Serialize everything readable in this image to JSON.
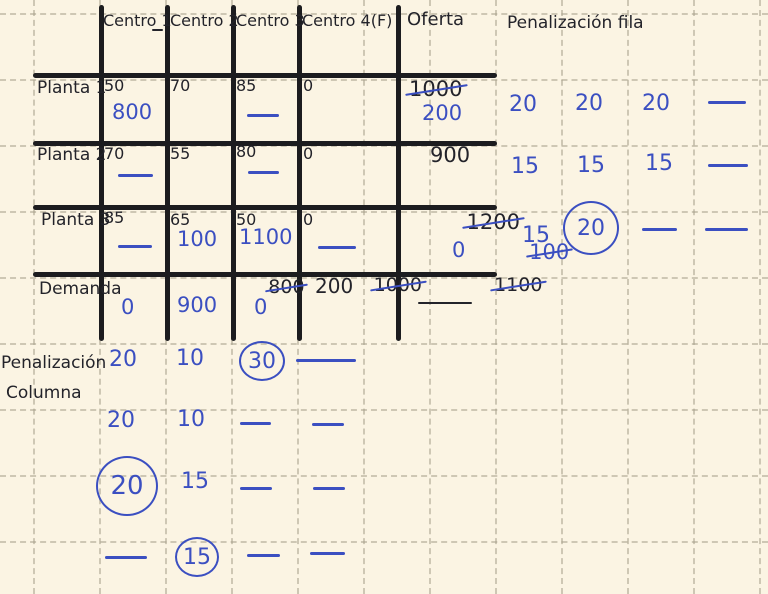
{
  "palette": {
    "paper": "#fbf4e3",
    "ink": "#23232a",
    "pen": "#3b4fc1"
  },
  "table": {
    "columns": [
      "Centro 1",
      "Centro 2",
      "Centro 3",
      "Centro 4(F)",
      "Oferta"
    ],
    "rows": [
      {
        "label": "Planta 1",
        "costs": [
          "50",
          "70",
          "85",
          "0"
        ],
        "marks": {
          "alloc_c1": "800",
          "dash_c3": "—"
        },
        "oferta": {
          "old": "1000",
          "new": "200"
        }
      },
      {
        "label": "Planta 2",
        "costs": [
          "70",
          "55",
          "80",
          "0"
        ],
        "marks": {
          "dash_c1": "—",
          "dash_c3": "—"
        },
        "oferta": {
          "value": "900"
        }
      },
      {
        "label": "Planta 3",
        "costs": [
          "85",
          "65",
          "50",
          "0"
        ],
        "marks": {
          "dash_c1": "—",
          "alloc_c2": "100",
          "alloc_c3": "1100",
          "dash_c4": "—"
        },
        "oferta": {
          "old": "1200",
          "mid": "100",
          "new": "0"
        }
      }
    ],
    "demand": {
      "label": "Demanda",
      "c1": {
        "old": "800",
        "new": "0"
      },
      "c2": {
        "old": "1000",
        "new": "900"
      },
      "c3": {
        "old": "1100",
        "new": "0"
      },
      "c4": {
        "value": "200"
      },
      "oferta_dash": "—"
    }
  },
  "row_penalty": {
    "title": "Penalización fila",
    "iter1": [
      "20",
      "20",
      "20",
      "—"
    ],
    "iter2": [
      "15",
      "15",
      "15",
      "—"
    ],
    "iter3": [
      "15",
      "20",
      "—",
      "—"
    ]
  },
  "col_penalty": {
    "title_line1": "Penalización",
    "title_line2": "Columna",
    "iter1": [
      "20",
      "10",
      "30",
      "—"
    ],
    "iter2": [
      "20",
      "10",
      "—",
      "—"
    ],
    "iter3": [
      "20",
      "15",
      "—",
      "—"
    ],
    "iter4": [
      "—",
      "15",
      "—",
      "—"
    ]
  }
}
